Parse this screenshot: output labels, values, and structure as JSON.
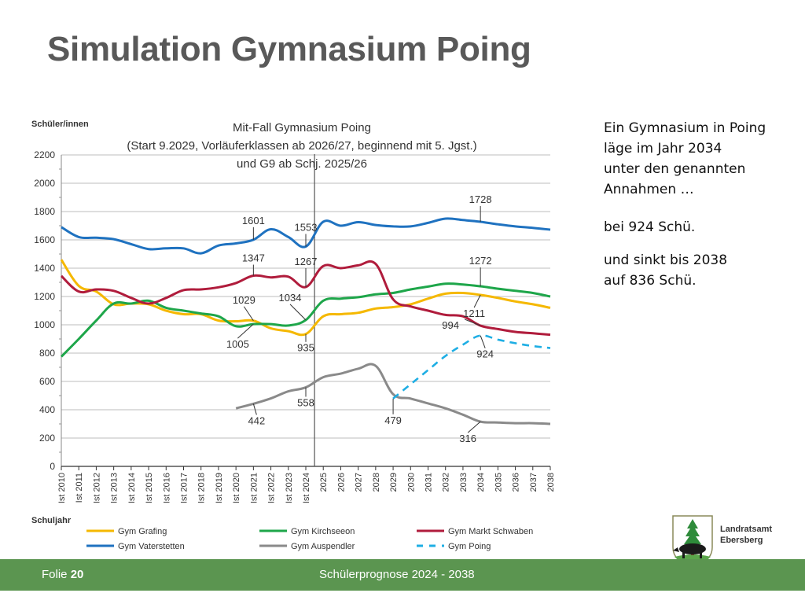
{
  "slide": {
    "title": "Simulation Gymnasium Poing",
    "footer": {
      "folie_label": "Folie",
      "folie_number": "20",
      "subtitle": "Schülerprognose 2024 - 2038"
    },
    "logo": {
      "line1": "Landratsamt",
      "line2": "Ebersberg"
    },
    "side_text": {
      "lines1": [
        "Ein Gymnasium in Poing",
        "läge im Jahr 2034",
        "unter den genannten",
        "Annahmen …"
      ],
      "line2": "bei 924 Schü.",
      "lines3": [
        "und sinkt bis 2038",
        "auf 836 Schü."
      ]
    }
  },
  "chart_data": {
    "type": "line",
    "title": [
      "Mit-Fall Gymnasium Poing",
      "(Start 9.2029, Vorläuferklassen  ab 2026/27, beginnend mit 5. Jgst.)",
      "und G9 ab Schj. 2025/26"
    ],
    "xlabel": "Schuljahr",
    "ylabel": "Schüler/innen",
    "ylim": [
      0,
      2200
    ],
    "yticks": [
      0,
      200,
      400,
      600,
      800,
      1000,
      1200,
      1400,
      1600,
      1800,
      2000,
      2200
    ],
    "grid": true,
    "legend_position": "bottom",
    "divider_after": "Ist 2024",
    "categories": [
      "Ist 2010",
      "Ist 2011",
      "Ist 2012",
      "Ist 2013",
      "Ist 2014",
      "Ist 2015",
      "Ist 2016",
      "Ist 2017",
      "Ist 2018",
      "Ist 2019",
      "Ist 2020",
      "Ist 2021",
      "Ist 2022",
      "Ist 2023",
      "Ist 2024",
      "2025",
      "2026",
      "2027",
      "2028",
      "2029",
      "2030",
      "2031",
      "2032",
      "2033",
      "2034",
      "2035",
      "2036",
      "2037",
      "2038"
    ],
    "series": [
      {
        "name": "Gym Grafing",
        "color": "#f5b800",
        "dashed": false,
        "values": [
          1460,
          1275,
          1235,
          1145,
          1150,
          1145,
          1100,
          1075,
          1075,
          1030,
          1025,
          1029,
          975,
          955,
          935,
          1060,
          1075,
          1085,
          1115,
          1125,
          1145,
          1185,
          1220,
          1225,
          1211,
          1190,
          1165,
          1145,
          1120
        ]
      },
      {
        "name": "Gym Kirchseeon",
        "color": "#1ea64a",
        "dashed": false,
        "values": [
          775,
          900,
          1030,
          1150,
          1150,
          1170,
          1120,
          1100,
          1080,
          1060,
          990,
          1005,
          1005,
          995,
          1034,
          1170,
          1185,
          1195,
          1215,
          1225,
          1250,
          1270,
          1290,
          1285,
          1272,
          1255,
          1240,
          1225,
          1200
        ]
      },
      {
        "name": "Gym Markt Schwaben",
        "color": "#b01c3c",
        "dashed": false,
        "values": [
          1345,
          1235,
          1250,
          1240,
          1190,
          1150,
          1190,
          1245,
          1250,
          1265,
          1295,
          1347,
          1335,
          1340,
          1267,
          1415,
          1400,
          1420,
          1430,
          1180,
          1130,
          1100,
          1070,
          1060,
          994,
          970,
          950,
          940,
          930
        ]
      },
      {
        "name": "Gym Vaterstetten",
        "color": "#1f72c0",
        "dashed": false,
        "values": [
          1690,
          1620,
          1615,
          1605,
          1570,
          1535,
          1540,
          1540,
          1505,
          1560,
          1575,
          1601,
          1675,
          1620,
          1553,
          1728,
          1700,
          1725,
          1705,
          1695,
          1695,
          1720,
          1750,
          1740,
          1728,
          1710,
          1695,
          1685,
          1672
        ]
      },
      {
        "name": "Gym Auspendler",
        "color": "#8a8a8a",
        "dashed": false,
        "values": [
          null,
          null,
          null,
          null,
          null,
          null,
          null,
          null,
          null,
          null,
          410,
          442,
          480,
          530,
          558,
          630,
          655,
          690,
          710,
          510,
          479,
          445,
          410,
          365,
          316,
          310,
          305,
          305,
          300
        ]
      },
      {
        "name": "Gym Poing",
        "color": "#1eaee4",
        "dashed": true,
        "values": [
          null,
          null,
          null,
          null,
          null,
          null,
          null,
          null,
          null,
          null,
          null,
          null,
          null,
          null,
          null,
          null,
          null,
          null,
          null,
          479,
          580,
          680,
          780,
          860,
          924,
          895,
          870,
          850,
          836
        ]
      }
    ],
    "annotations": [
      {
        "text": "1601",
        "series": "Gym Vaterstetten",
        "x": "Ist 2021"
      },
      {
        "text": "1553",
        "series": "Gym Vaterstetten",
        "x": "Ist 2024"
      },
      {
        "text": "1728",
        "series": "Gym Vaterstetten",
        "x": "2034"
      },
      {
        "text": "1347",
        "series": "Gym Markt Schwaben",
        "x": "Ist 2021"
      },
      {
        "text": "1267",
        "series": "Gym Markt Schwaben",
        "x": "Ist 2024"
      },
      {
        "text": "994",
        "series": "Gym Markt Schwaben",
        "x": "2034"
      },
      {
        "text": "1029",
        "series": "Gym Grafing",
        "x": "Ist 2021"
      },
      {
        "text": "935",
        "series": "Gym Grafing",
        "x": "Ist 2024"
      },
      {
        "text": "1211",
        "series": "Gym Grafing",
        "x": "2034"
      },
      {
        "text": "1005",
        "series": "Gym Kirchseeon",
        "x": "Ist 2021"
      },
      {
        "text": "1034",
        "series": "Gym Kirchseeon",
        "x": "Ist 2024"
      },
      {
        "text": "1272",
        "series": "Gym Kirchseeon",
        "x": "2034"
      },
      {
        "text": "442",
        "series": "Gym Auspendler",
        "x": "Ist 2021"
      },
      {
        "text": "558",
        "series": "Gym Auspendler",
        "x": "Ist 2024"
      },
      {
        "text": "316",
        "series": "Gym Auspendler",
        "x": "2034"
      },
      {
        "text": "479",
        "series": "Gym Poing",
        "x": "2029"
      },
      {
        "text": "924",
        "series": "Gym Poing",
        "x": "2034"
      }
    ]
  }
}
